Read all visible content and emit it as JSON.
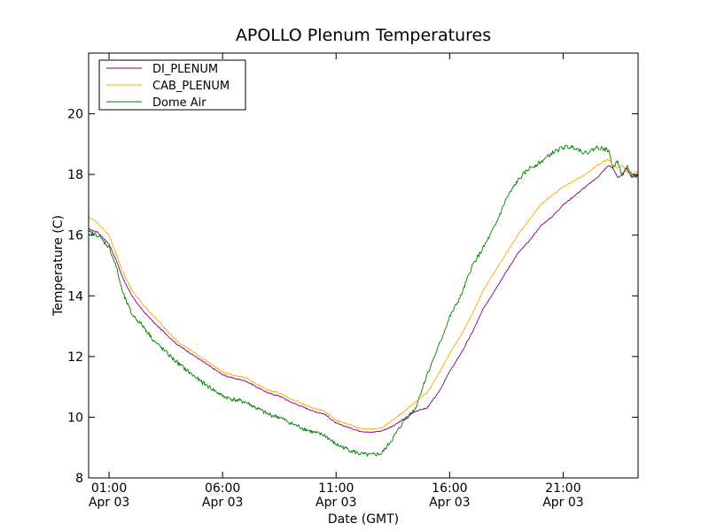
{
  "chart_data": {
    "type": "line",
    "title": "APOLLO Plenum Temperatures",
    "xlabel": "Date (GMT)",
    "ylabel": "Temperature (C)",
    "x_unit": "hours (GMT, Apr 03)",
    "xlim": [
      0.1,
      24.3
    ],
    "ylim": [
      8,
      22
    ],
    "yticks": [
      8,
      10,
      12,
      14,
      16,
      18,
      20
    ],
    "xticks": [
      {
        "value": 1,
        "time": "01:00",
        "date": "Apr 03"
      },
      {
        "value": 6,
        "time": "06:00",
        "date": "Apr 03"
      },
      {
        "value": 11,
        "time": "11:00",
        "date": "Apr 03"
      },
      {
        "value": 16,
        "time": "16:00",
        "date": "Apr 03"
      },
      {
        "value": 21,
        "time": "21:00",
        "date": "Apr 03"
      }
    ],
    "legend": {
      "position": "top-left",
      "entries": [
        "DI_PLENUM",
        "CAB_PLENUM",
        "Dome Air"
      ]
    },
    "series": [
      {
        "name": "DI_PLENUM",
        "color": "#800080",
        "noise": 0.02,
        "x": [
          0.1,
          0.5,
          1.0,
          1.3,
          1.6,
          2.0,
          2.5,
          3.0,
          4.0,
          5.0,
          6.0,
          6.4,
          7.0,
          7.5,
          8.0,
          8.5,
          9.0,
          10.0,
          10.5,
          11.0,
          12.0,
          12.5,
          13.0,
          13.5,
          14.0,
          14.5,
          15.0,
          15.5,
          16.0,
          16.5,
          17.0,
          17.5,
          18.0,
          18.5,
          19.0,
          19.5,
          20.0,
          20.5,
          21.0,
          21.5,
          22.0,
          22.5,
          23.0,
          23.2,
          23.4,
          23.6,
          23.8,
          24.0,
          24.3
        ],
        "values": [
          16.2,
          16.1,
          15.7,
          15.2,
          14.6,
          14.0,
          13.5,
          13.1,
          12.4,
          11.9,
          11.4,
          11.3,
          11.2,
          11.0,
          10.8,
          10.7,
          10.5,
          10.2,
          10.1,
          9.8,
          9.55,
          9.5,
          9.55,
          9.7,
          9.95,
          10.2,
          10.3,
          10.8,
          11.5,
          12.1,
          12.8,
          13.6,
          14.2,
          14.8,
          15.4,
          15.8,
          16.3,
          16.6,
          17.0,
          17.3,
          17.6,
          17.9,
          18.3,
          18.2,
          17.9,
          18.0,
          18.2,
          17.9,
          18.0
        ]
      },
      {
        "name": "CAB_PLENUM",
        "color": "#ffa500",
        "noise": 0.02,
        "x": [
          0.1,
          0.5,
          1.0,
          1.3,
          1.6,
          2.0,
          2.5,
          3.0,
          4.0,
          5.0,
          6.0,
          6.4,
          7.0,
          7.5,
          8.0,
          8.5,
          9.0,
          10.0,
          10.5,
          11.0,
          12.0,
          12.5,
          13.0,
          13.5,
          14.0,
          14.5,
          15.0,
          15.5,
          16.0,
          16.5,
          17.0,
          17.5,
          18.0,
          18.5,
          19.0,
          19.5,
          20.0,
          20.5,
          21.0,
          21.5,
          22.0,
          22.5,
          23.0,
          23.2,
          23.4,
          23.6,
          23.8,
          24.0,
          24.3
        ],
        "values": [
          16.6,
          16.4,
          16.0,
          15.4,
          14.8,
          14.2,
          13.7,
          13.3,
          12.5,
          12.0,
          11.5,
          11.4,
          11.3,
          11.1,
          10.9,
          10.8,
          10.6,
          10.3,
          10.2,
          9.9,
          9.65,
          9.6,
          9.65,
          9.9,
          10.2,
          10.5,
          10.8,
          11.4,
          12.1,
          12.7,
          13.4,
          14.2,
          14.8,
          15.4,
          16.0,
          16.5,
          17.0,
          17.3,
          17.6,
          17.8,
          18.0,
          18.3,
          18.5,
          18.3,
          18.2,
          18.3,
          18.1,
          18.0,
          18.1
        ]
      },
      {
        "name": "Dome Air",
        "color": "#008000",
        "noise": 0.07,
        "x": [
          0.1,
          0.5,
          1.0,
          1.3,
          1.6,
          2.0,
          2.5,
          3.0,
          4.0,
          5.0,
          6.0,
          6.4,
          7.0,
          7.5,
          8.0,
          8.5,
          9.0,
          10.0,
          10.5,
          11.0,
          12.0,
          12.5,
          13.0,
          13.5,
          14.0,
          14.5,
          15.0,
          15.5,
          16.0,
          16.5,
          17.0,
          17.5,
          18.0,
          18.5,
          19.0,
          19.5,
          20.0,
          20.5,
          21.0,
          21.5,
          22.0,
          22.5,
          23.0,
          23.2,
          23.4,
          23.6,
          23.8,
          24.0,
          24.3
        ],
        "values": [
          16.1,
          16.0,
          15.6,
          15.0,
          14.1,
          13.4,
          13.0,
          12.5,
          11.8,
          11.2,
          10.7,
          10.6,
          10.5,
          10.3,
          10.1,
          10.0,
          9.8,
          9.5,
          9.4,
          9.1,
          8.8,
          8.75,
          8.8,
          9.3,
          9.9,
          10.3,
          11.4,
          12.3,
          13.3,
          14.0,
          15.0,
          15.6,
          16.3,
          17.2,
          17.8,
          18.2,
          18.4,
          18.7,
          18.9,
          18.9,
          18.7,
          18.9,
          18.8,
          18.2,
          18.5,
          17.9,
          18.3,
          18.0,
          17.9
        ]
      }
    ]
  }
}
